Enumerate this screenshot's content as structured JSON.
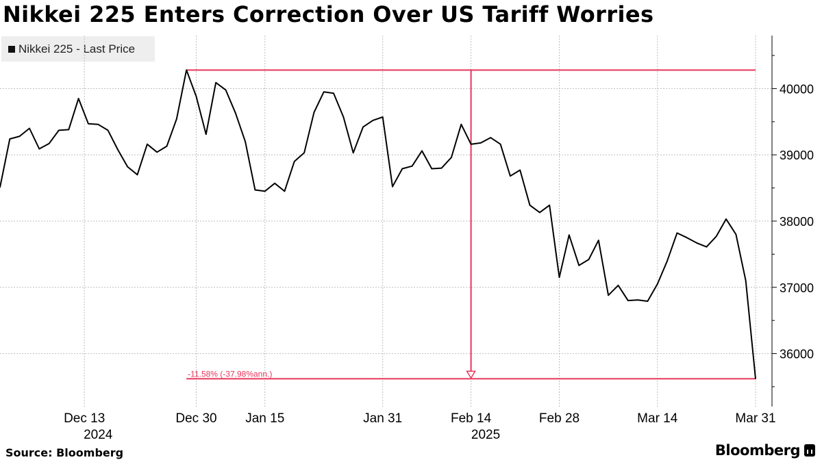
{
  "title": "Nikkei 225 Enters Correction Over US Tariff Worries",
  "legend": {
    "label": "Nikkei 225 - Last Price",
    "color": "#000000"
  },
  "source": "Source: Bloomberg",
  "brand": "Bloomberg",
  "chart_data": {
    "type": "line",
    "series": [
      {
        "name": "Nikkei 225 - Last Price",
        "color": "#000000",
        "values": [
          38510,
          39240,
          39280,
          39400,
          39090,
          39170,
          39370,
          39380,
          39850,
          39470,
          39460,
          39370,
          39080,
          38820,
          38700,
          39160,
          39040,
          39130,
          39540,
          40280,
          39880,
          39310,
          40090,
          39980,
          39630,
          39200,
          38470,
          38450,
          38570,
          38450,
          38900,
          39030,
          39640,
          39950,
          39930,
          39570,
          39030,
          39420,
          39520,
          39570,
          38520,
          38790,
          38830,
          39060,
          38790,
          38800,
          38960,
          39460,
          39160,
          39180,
          39260,
          39160,
          38680,
          38770,
          38240,
          38130,
          38240,
          37150,
          37790,
          37330,
          37420,
          37710,
          36880,
          37030,
          36800,
          36810,
          36790,
          37050,
          37400,
          37820,
          37750,
          37670,
          37610,
          37770,
          38030,
          37800,
          37100,
          35620
        ]
      }
    ],
    "x_tick_labels": [
      {
        "label": "Dec 13",
        "index": 8.6
      },
      {
        "label": "Dec 30",
        "index": 20
      },
      {
        "label": "Jan 15",
        "index": 27
      },
      {
        "label": "Jan 31",
        "index": 39
      },
      {
        "label": "Feb 14",
        "index": 48
      },
      {
        "label": "Feb 28",
        "index": 57
      },
      {
        "label": "Mar 14",
        "index": 67
      },
      {
        "label": "Mar 31",
        "index": 77
      }
    ],
    "x_year_labels": [
      {
        "label": "2024",
        "index": 10
      },
      {
        "label": "2025",
        "index": 49.5
      }
    ],
    "y_ticks": [
      36000,
      37000,
      38000,
      39000,
      40000
    ],
    "ylim": [
      35200,
      40800
    ],
    "grid": true,
    "y_axis_side": "right",
    "legend_position": "top-left",
    "annotation": {
      "label": "-11.58% (-37.98%ann.)",
      "color": "#e8345a",
      "high_value": 40280,
      "low_value": 35620,
      "start_index": 19,
      "arrow_index": 48
    }
  }
}
